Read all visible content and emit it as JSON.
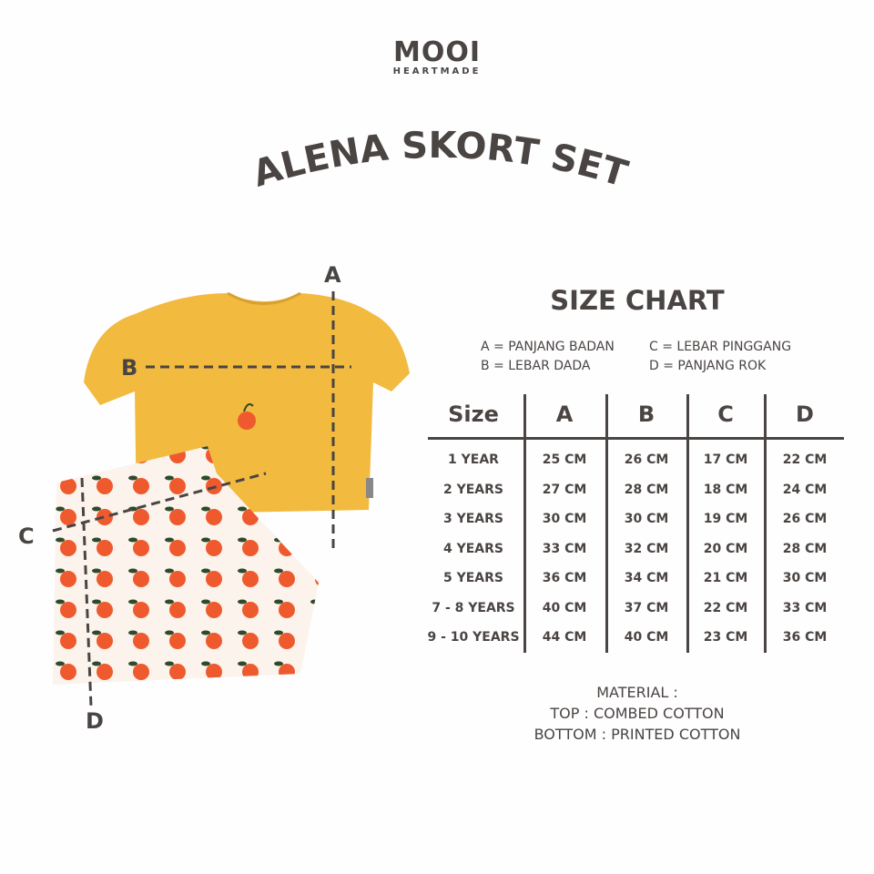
{
  "brand": {
    "name": "MOOI",
    "tagline": "HEARTMADE"
  },
  "product_title": "ALENA SKORT SET",
  "illustration": {
    "labels": [
      "A",
      "B",
      "C",
      "D"
    ],
    "top_color": "#F2BA3F",
    "fruit_color": "#EE5A2E"
  },
  "size_chart": {
    "title": "SIZE CHART",
    "legend": [
      "A = PANJANG BADAN",
      "C = LEBAR PINGGANG",
      "B = LEBAR DADA",
      "D = PANJANG ROK"
    ],
    "headers": [
      "Size",
      "A",
      "B",
      "C",
      "D"
    ],
    "rows": [
      [
        "1 YEAR",
        "25 CM",
        "26 CM",
        "17 CM",
        "22 CM"
      ],
      [
        "2 YEARS",
        "27 CM",
        "28 CM",
        "18 CM",
        "24 CM"
      ],
      [
        "3 YEARS",
        "30 CM",
        "30 CM",
        "19 CM",
        "26 CM"
      ],
      [
        "4 YEARS",
        "33 CM",
        "32 CM",
        "20 CM",
        "28 CM"
      ],
      [
        "5 YEARS",
        "36 CM",
        "34 CM",
        "21 CM",
        "30 CM"
      ],
      [
        "7 - 8 YEARS",
        "40 CM",
        "37 CM",
        "22 CM",
        "33 CM"
      ],
      [
        "9 - 10 YEARS",
        "44 CM",
        "40 CM",
        "23 CM",
        "36 CM"
      ]
    ]
  },
  "material": {
    "heading": "MATERIAL :",
    "top": "TOP : COMBED COTTON",
    "bottom": "BOTTOM : PRINTED COTTON"
  }
}
